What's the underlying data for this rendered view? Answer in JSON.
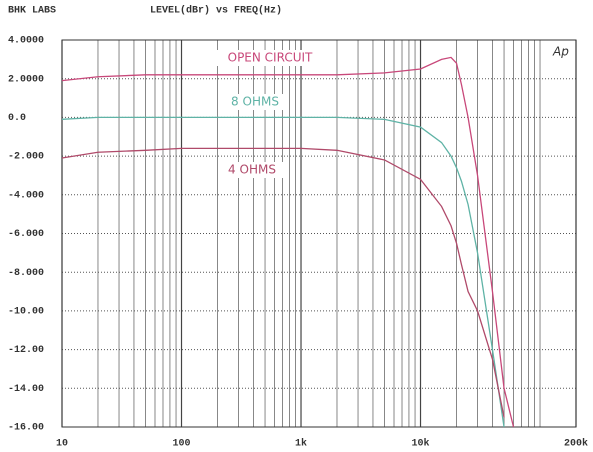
{
  "chart_data": {
    "type": "line",
    "header_left": "BHK LABS",
    "title": "LEVEL(dBr) vs FREQ(Hz)",
    "logo": "Ap",
    "log_x": true,
    "grid": true,
    "x": [
      10,
      20,
      50,
      100,
      200,
      500,
      1000,
      2000,
      5000,
      10000,
      15000,
      18000,
      20000,
      22000,
      25000,
      30000,
      40000,
      50000,
      60000
    ],
    "series": [
      {
        "name": "OPEN CIRCUIT",
        "color": "#c8487a",
        "values": [
          1.9,
          2.1,
          2.2,
          2.2,
          2.2,
          2.2,
          2.2,
          2.2,
          2.3,
          2.5,
          3.0,
          3.1,
          2.8,
          1.7,
          0.0,
          -3,
          -9,
          -14,
          -16
        ]
      },
      {
        "name": "8 OHMS",
        "color": "#5fb3a6",
        "values": [
          -0.1,
          0,
          0,
          0,
          0,
          0,
          0,
          0,
          -0.1,
          -0.5,
          -1.3,
          -2,
          -2.6,
          -3.3,
          -4.5,
          -7,
          -12,
          -16,
          null
        ]
      },
      {
        "name": "4 OHMS",
        "color": "#b04a6a",
        "values": [
          -2.1,
          -1.8,
          -1.7,
          -1.6,
          -1.6,
          -1.6,
          -1.6,
          -1.7,
          -2.2,
          -3.2,
          -4.6,
          -5.6,
          -6.5,
          -7.6,
          -9,
          -10,
          -12.5,
          -15.5,
          null
        ]
      }
    ],
    "xlim": [
      10,
      200000
    ],
    "xticks": [
      10,
      100,
      {
        "value": 1000,
        "label": "1k"
      },
      {
        "value": 10000,
        "label": "10k"
      },
      {
        "value": 200000,
        "label": "200k"
      }
    ],
    "xminorticks": [
      20,
      30,
      40,
      50,
      60,
      70,
      80,
      90,
      200,
      300,
      400,
      500,
      600,
      700,
      800,
      900,
      2000,
      3000,
      4000,
      5000,
      6000,
      7000,
      8000,
      9000,
      20000,
      30000,
      40000,
      50000,
      60000,
      70000,
      80000,
      90000,
      100000
    ],
    "ylim": [
      -16,
      4
    ],
    "yticks": [
      {
        "value": 4,
        "label": "4.0000"
      },
      {
        "value": 2,
        "label": "2.0000"
      },
      {
        "value": 0,
        "label": "0.0"
      },
      {
        "value": -2,
        "label": "-2.000"
      },
      {
        "value": -4,
        "label": "-4.000"
      },
      {
        "value": -6,
        "label": "-6.000"
      },
      {
        "value": -8,
        "label": "-8.000"
      },
      {
        "value": -10,
        "label": "-10.00"
      },
      {
        "value": -12,
        "label": "-12.00"
      },
      {
        "value": -14,
        "label": "-14.00"
      },
      {
        "value": -16,
        "label": "-16.00"
      }
    ]
  }
}
